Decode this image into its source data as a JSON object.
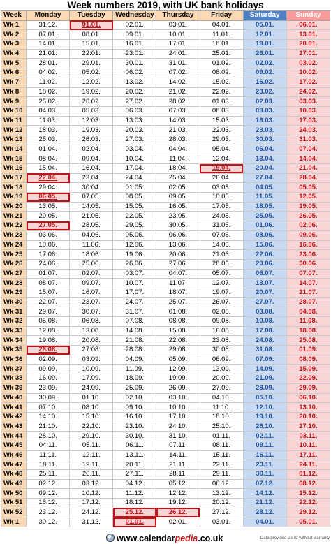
{
  "title": "Week numbers 2019, with UK bank holidays",
  "headers": [
    "Week",
    "Monday",
    "Tuesday",
    "Wednesday",
    "Thursday",
    "Friday",
    "Saturday",
    "Sunday"
  ],
  "holiday_color": "#c0141a",
  "weekend_colors": {
    "saturday": "#c7daf1",
    "sunday": "#fad5d5"
  },
  "weeks": [
    {
      "week": "Wk 1",
      "days": [
        "31.12.",
        "01.01.",
        "02.01.",
        "03.01.",
        "04.01.",
        "05.01.",
        "06.01."
      ],
      "holidays": [
        1
      ]
    },
    {
      "week": "Wk 2",
      "days": [
        "07.01.",
        "08.01.",
        "09.01.",
        "10.01.",
        "11.01.",
        "12.01.",
        "13.01."
      ],
      "holidays": []
    },
    {
      "week": "Wk 3",
      "days": [
        "14.01.",
        "15.01.",
        "16.01.",
        "17.01.",
        "18.01.",
        "19.01.",
        "20.01."
      ],
      "holidays": []
    },
    {
      "week": "Wk 4",
      "days": [
        "21.01.",
        "22.01.",
        "23.01.",
        "24.01.",
        "25.01.",
        "26.01.",
        "27.01."
      ],
      "holidays": []
    },
    {
      "week": "Wk 5",
      "days": [
        "28.01.",
        "29.01.",
        "30.01.",
        "31.01.",
        "01.02.",
        "02.02.",
        "03.02."
      ],
      "holidays": []
    },
    {
      "week": "Wk 6",
      "days": [
        "04.02.",
        "05.02.",
        "06.02.",
        "07.02.",
        "08.02.",
        "09.02.",
        "10.02."
      ],
      "holidays": []
    },
    {
      "week": "Wk 7",
      "days": [
        "11.02.",
        "12.02.",
        "13.02.",
        "14.02.",
        "15.02.",
        "16.02.",
        "17.02."
      ],
      "holidays": []
    },
    {
      "week": "Wk 8",
      "days": [
        "18.02.",
        "19.02.",
        "20.02.",
        "21.02.",
        "22.02.",
        "23.02.",
        "24.02."
      ],
      "holidays": []
    },
    {
      "week": "Wk 9",
      "days": [
        "25.02.",
        "26.02.",
        "27.02.",
        "28.02.",
        "01.03.",
        "02.03.",
        "03.03."
      ],
      "holidays": []
    },
    {
      "week": "Wk 10",
      "days": [
        "04.03.",
        "05.03.",
        "06.03.",
        "07.03.",
        "08.03.",
        "09.03.",
        "10.03."
      ],
      "holidays": []
    },
    {
      "week": "Wk 11",
      "days": [
        "11.03.",
        "12.03.",
        "13.03.",
        "14.03.",
        "15.03.",
        "16.03.",
        "17.03."
      ],
      "holidays": []
    },
    {
      "week": "Wk 12",
      "days": [
        "18.03.",
        "19.03.",
        "20.03.",
        "21.03.",
        "22.03.",
        "23.03.",
        "24.03."
      ],
      "holidays": []
    },
    {
      "week": "Wk 13",
      "days": [
        "25.03.",
        "26.03.",
        "27.03.",
        "28.03.",
        "29.03.",
        "30.03.",
        "31.03."
      ],
      "holidays": []
    },
    {
      "week": "Wk 14",
      "days": [
        "01.04.",
        "02.04.",
        "03.04.",
        "04.04.",
        "05.04.",
        "06.04.",
        "07.04."
      ],
      "holidays": []
    },
    {
      "week": "Wk 15",
      "days": [
        "08.04.",
        "09.04.",
        "10.04.",
        "11.04.",
        "12.04.",
        "13.04.",
        "14.04."
      ],
      "holidays": []
    },
    {
      "week": "Wk 16",
      "days": [
        "15.04.",
        "16.04.",
        "17.04.",
        "18.04.",
        "19.04.",
        "20.04.",
        "21.04."
      ],
      "holidays": [
        4
      ]
    },
    {
      "week": "Wk 17",
      "days": [
        "22.04.",
        "23.04.",
        "24.04.",
        "25.04.",
        "26.04.",
        "27.04.",
        "28.04."
      ],
      "holidays": [
        0
      ]
    },
    {
      "week": "Wk 18",
      "days": [
        "29.04.",
        "30.04.",
        "01.05.",
        "02.05.",
        "03.05.",
        "04.05.",
        "05.05."
      ],
      "holidays": []
    },
    {
      "week": "Wk 19",
      "days": [
        "06.05.",
        "07.05.",
        "08.05.",
        "09.05.",
        "10.05.",
        "11.05.",
        "12.05."
      ],
      "holidays": [
        0
      ]
    },
    {
      "week": "Wk 20",
      "days": [
        "13.05.",
        "14.05.",
        "15.05.",
        "16.05.",
        "17.05.",
        "18.05.",
        "19.05."
      ],
      "holidays": []
    },
    {
      "week": "Wk 21",
      "days": [
        "20.05.",
        "21.05.",
        "22.05.",
        "23.05.",
        "24.05.",
        "25.05.",
        "26.05."
      ],
      "holidays": []
    },
    {
      "week": "Wk 22",
      "days": [
        "27.05.",
        "28.05.",
        "29.05.",
        "30.05.",
        "31.05.",
        "01.06.",
        "02.06."
      ],
      "holidays": [
        0
      ]
    },
    {
      "week": "Wk 23",
      "days": [
        "03.06.",
        "04.06.",
        "05.06.",
        "06.06.",
        "07.06.",
        "08.06.",
        "09.06."
      ],
      "holidays": []
    },
    {
      "week": "Wk 24",
      "days": [
        "10.06.",
        "11.06.",
        "12.06.",
        "13.06.",
        "14.06.",
        "15.06.",
        "16.06."
      ],
      "holidays": []
    },
    {
      "week": "Wk 25",
      "days": [
        "17.06.",
        "18.06.",
        "19.06.",
        "20.06.",
        "21.06.",
        "22.06.",
        "23.06."
      ],
      "holidays": []
    },
    {
      "week": "Wk 26",
      "days": [
        "24.06.",
        "25.06.",
        "26.06.",
        "27.06.",
        "28.06.",
        "29.06.",
        "30.06."
      ],
      "holidays": []
    },
    {
      "week": "Wk 27",
      "days": [
        "01.07.",
        "02.07.",
        "03.07.",
        "04.07.",
        "05.07.",
        "06.07.",
        "07.07."
      ],
      "holidays": []
    },
    {
      "week": "Wk 28",
      "days": [
        "08.07.",
        "09.07.",
        "10.07.",
        "11.07.",
        "12.07.",
        "13.07.",
        "14.07."
      ],
      "holidays": []
    },
    {
      "week": "Wk 29",
      "days": [
        "15.07.",
        "16.07.",
        "17.07.",
        "18.07.",
        "19.07.",
        "20.07.",
        "21.07."
      ],
      "holidays": []
    },
    {
      "week": "Wk 30",
      "days": [
        "22.07.",
        "23.07.",
        "24.07.",
        "25.07.",
        "26.07.",
        "27.07.",
        "28.07."
      ],
      "holidays": []
    },
    {
      "week": "Wk 31",
      "days": [
        "29.07.",
        "30.07.",
        "31.07.",
        "01.08.",
        "02.08.",
        "03.08.",
        "04.08."
      ],
      "holidays": []
    },
    {
      "week": "Wk 32",
      "days": [
        "05.08.",
        "06.08.",
        "07.08.",
        "08.08.",
        "09.08.",
        "10.08.",
        "11.08."
      ],
      "holidays": []
    },
    {
      "week": "Wk 33",
      "days": [
        "12.08.",
        "13.08.",
        "14.08.",
        "15.08.",
        "16.08.",
        "17.08.",
        "18.08."
      ],
      "holidays": []
    },
    {
      "week": "Wk 34",
      "days": [
        "19.08.",
        "20.08.",
        "21.08.",
        "22.08.",
        "23.08.",
        "24.08.",
        "25.08."
      ],
      "holidays": []
    },
    {
      "week": "Wk 35",
      "days": [
        "26.08.",
        "27.08.",
        "28.08.",
        "29.08.",
        "30.08.",
        "31.08.",
        "01.09."
      ],
      "holidays": [
        0
      ]
    },
    {
      "week": "Wk 36",
      "days": [
        "02.09.",
        "03.09.",
        "04.09.",
        "05.09.",
        "06.09.",
        "07.09.",
        "08.09."
      ],
      "holidays": []
    },
    {
      "week": "Wk 37",
      "days": [
        "09.09.",
        "10.09.",
        "11.09.",
        "12.09.",
        "13.09.",
        "14.09.",
        "15.09."
      ],
      "holidays": []
    },
    {
      "week": "Wk 38",
      "days": [
        "16.09.",
        "17.09.",
        "18.09.",
        "19.09.",
        "20.09.",
        "21.09.",
        "22.09."
      ],
      "holidays": []
    },
    {
      "week": "Wk 39",
      "days": [
        "23.09.",
        "24.09.",
        "25.09.",
        "26.09.",
        "27.09.",
        "28.09.",
        "29.09."
      ],
      "holidays": []
    },
    {
      "week": "Wk 40",
      "days": [
        "30.09.",
        "01.10.",
        "02.10.",
        "03.10.",
        "04.10.",
        "05.10.",
        "06.10."
      ],
      "holidays": []
    },
    {
      "week": "Wk 41",
      "days": [
        "07.10.",
        "08.10.",
        "09.10.",
        "10.10.",
        "11.10.",
        "12.10.",
        "13.10."
      ],
      "holidays": []
    },
    {
      "week": "Wk 42",
      "days": [
        "14.10.",
        "15.10.",
        "16.10.",
        "17.10.",
        "18.10.",
        "19.10.",
        "20.10."
      ],
      "holidays": []
    },
    {
      "week": "Wk 43",
      "days": [
        "21.10.",
        "22.10.",
        "23.10.",
        "24.10.",
        "25.10.",
        "26.10.",
        "27.10."
      ],
      "holidays": []
    },
    {
      "week": "Wk 44",
      "days": [
        "28.10.",
        "29.10.",
        "30.10.",
        "31.10.",
        "01.11.",
        "02.11.",
        "03.11."
      ],
      "holidays": []
    },
    {
      "week": "Wk 45",
      "days": [
        "04.11.",
        "05.11.",
        "06.11.",
        "07.11.",
        "08.11.",
        "09.11.",
        "10.11."
      ],
      "holidays": []
    },
    {
      "week": "Wk 46",
      "days": [
        "11.11.",
        "12.11.",
        "13.11.",
        "14.11.",
        "15.11.",
        "16.11.",
        "17.11."
      ],
      "holidays": []
    },
    {
      "week": "Wk 47",
      "days": [
        "18.11.",
        "19.11.",
        "20.11.",
        "21.11.",
        "22.11.",
        "23.11.",
        "24.11."
      ],
      "holidays": []
    },
    {
      "week": "Wk 48",
      "days": [
        "25.11.",
        "26.11.",
        "27.11.",
        "28.11.",
        "29.11.",
        "30.11.",
        "01.12."
      ],
      "holidays": []
    },
    {
      "week": "Wk 49",
      "days": [
        "02.12.",
        "03.12.",
        "04.12.",
        "05.12.",
        "06.12.",
        "07.12.",
        "08.12."
      ],
      "holidays": []
    },
    {
      "week": "Wk 50",
      "days": [
        "09.12.",
        "10.12.",
        "11.12.",
        "12.12.",
        "13.12.",
        "14.12.",
        "15.12."
      ],
      "holidays": []
    },
    {
      "week": "Wk 51",
      "days": [
        "16.12.",
        "17.12.",
        "18.12.",
        "19.12.",
        "20.12.",
        "21.12.",
        "22.12."
      ],
      "holidays": []
    },
    {
      "week": "Wk 52",
      "days": [
        "23.12.",
        "24.12.",
        "25.12.",
        "26.12.",
        "27.12.",
        "28.12.",
        "29.12."
      ],
      "holidays": [
        2,
        3
      ]
    },
    {
      "week": "Wk 1",
      "days": [
        "30.12.",
        "31.12.",
        "01.01.",
        "02.01.",
        "03.01.",
        "04.01.",
        "05.01."
      ],
      "holidays": [
        2
      ]
    }
  ],
  "footer": {
    "site_prefix": "www.calendar",
    "site_accent": "pedia",
    "site_suffix": ".co.uk",
    "disclaimer": "Data provided 'as is' without warranty",
    "icon": "globe-icon"
  }
}
